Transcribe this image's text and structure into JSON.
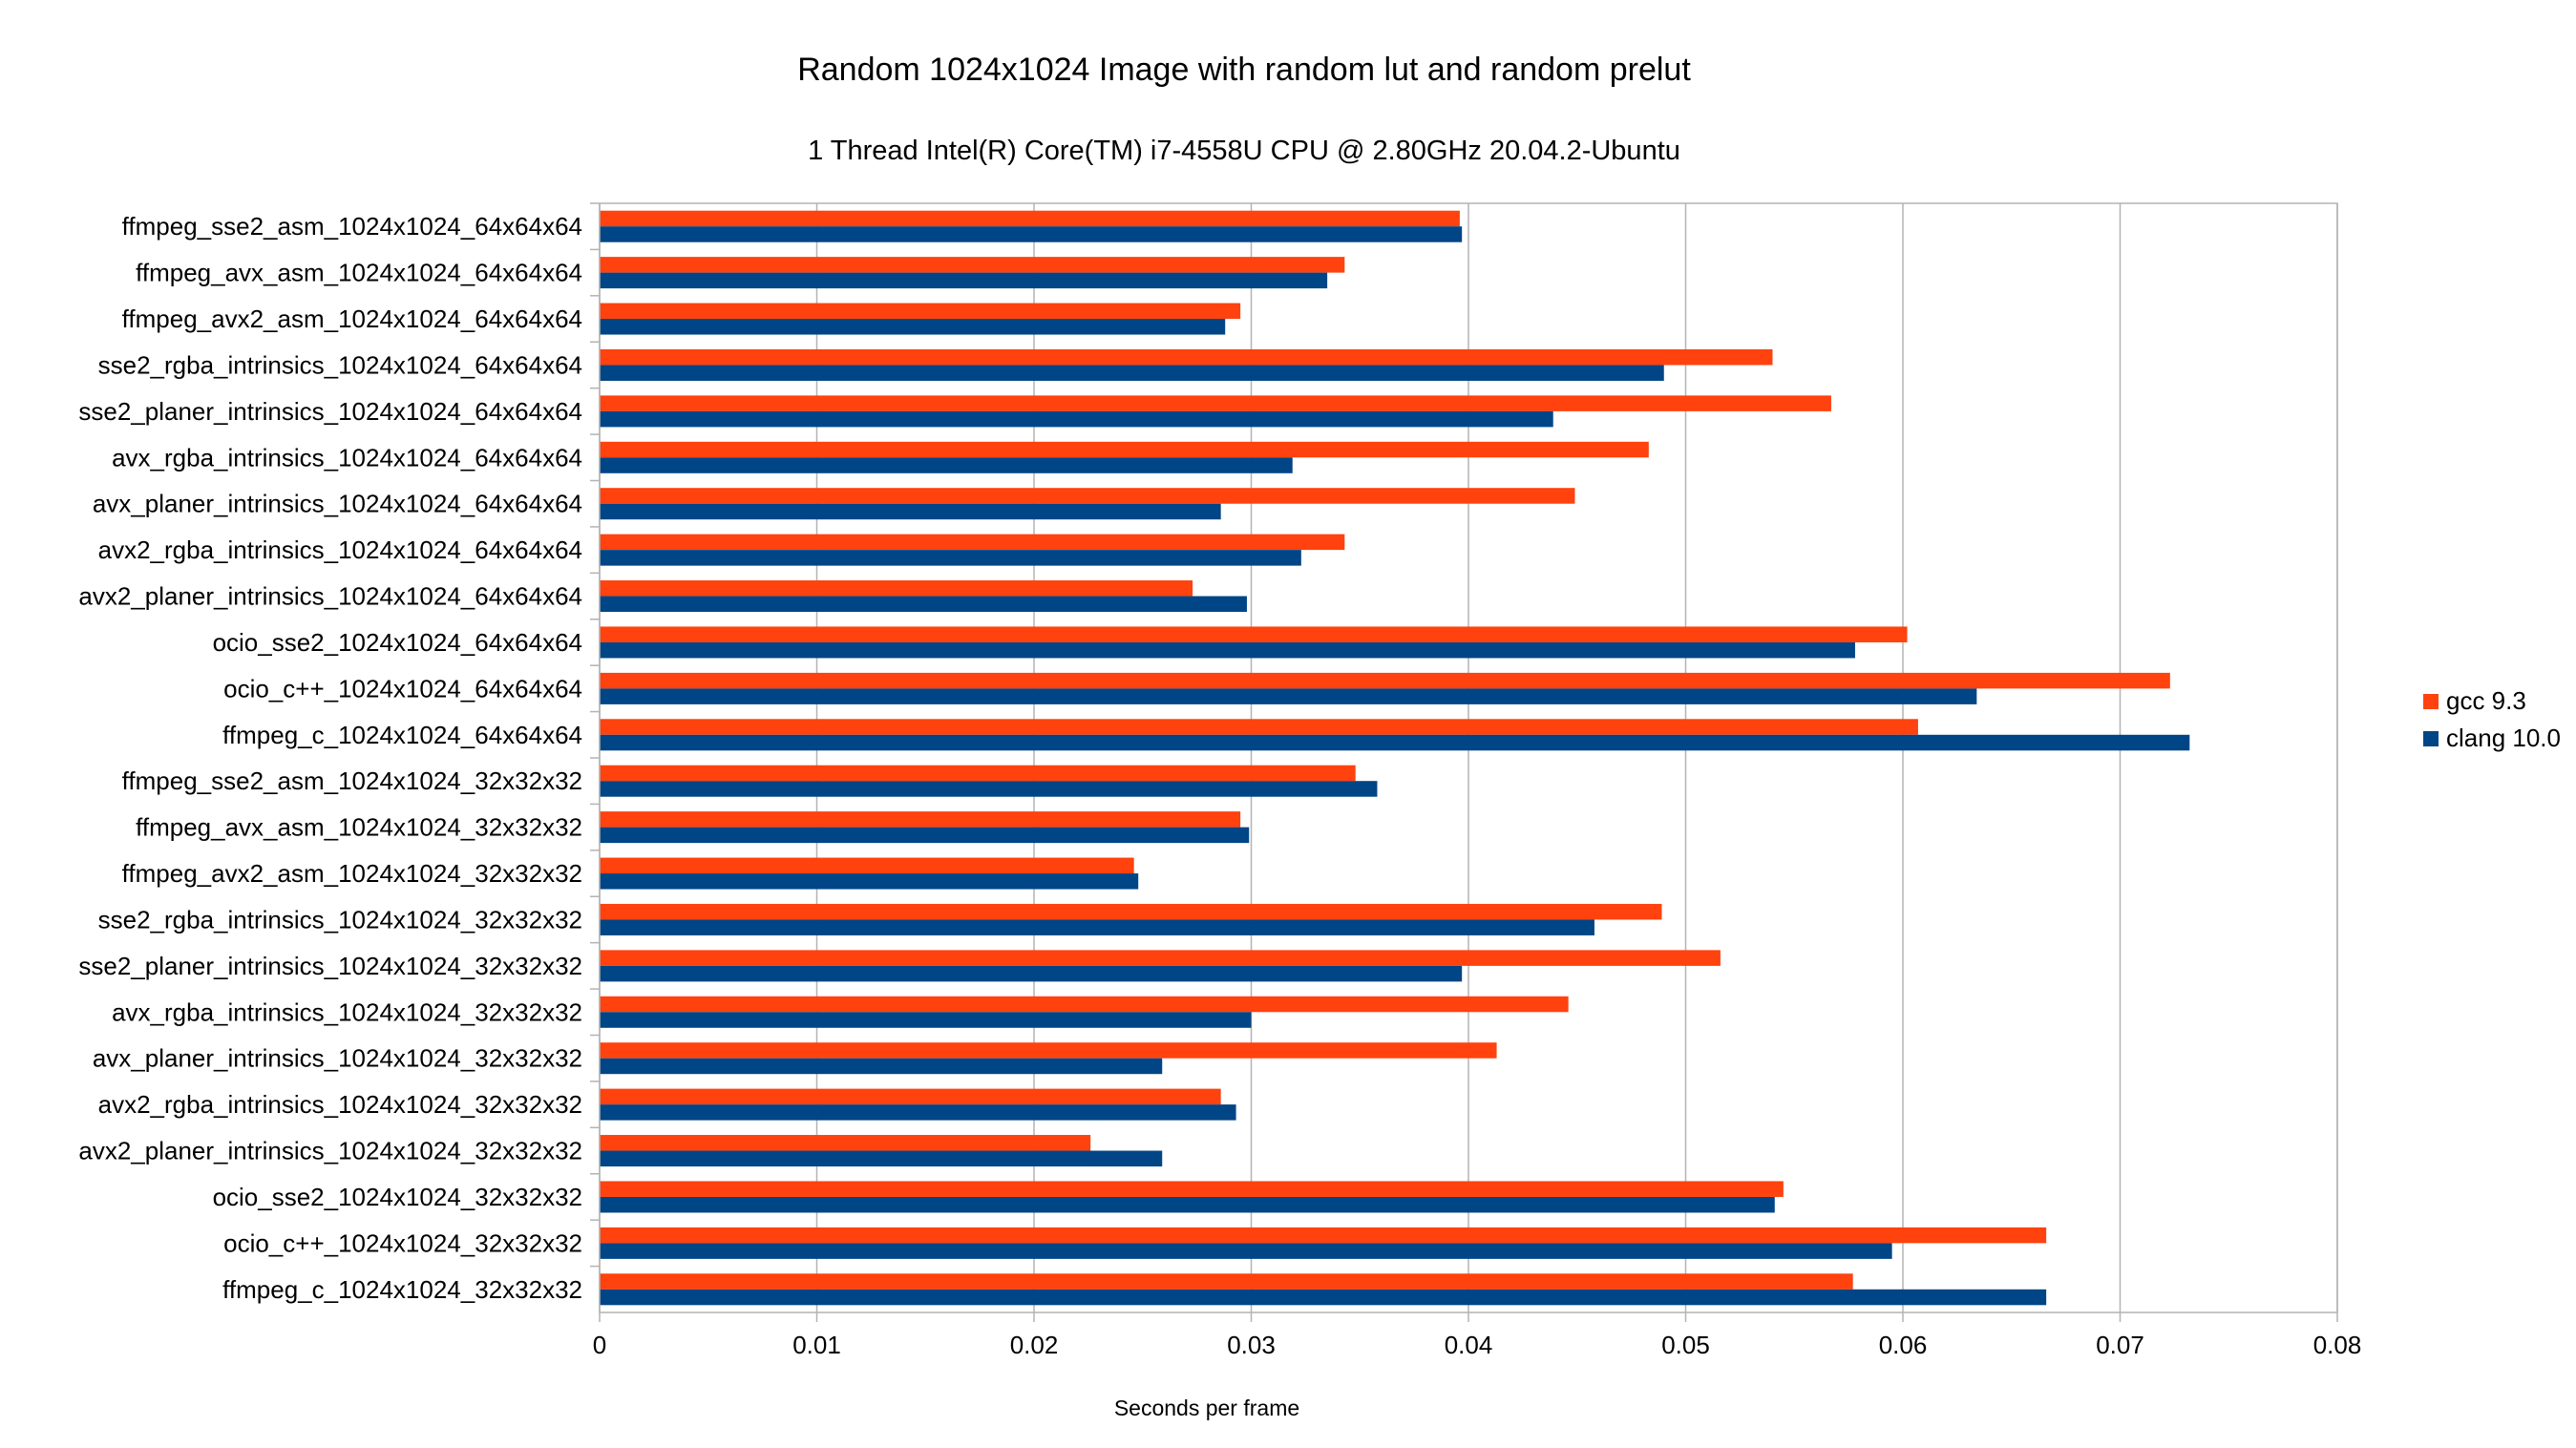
{
  "chart_data": {
    "type": "bar",
    "orientation": "horizontal",
    "title": "Random 1024x1024 Image with random lut and random prelut",
    "subtitle": "1 Thread Intel(R) Core(TM) i7-4558U CPU @ 2.80GHz 20.04.2-Ubuntu",
    "xlabel": "Seconds per frame",
    "ylabel": "",
    "xlim": [
      0,
      0.08
    ],
    "x_ticks": [
      "0",
      "0.01",
      "0.02",
      "0.03",
      "0.04",
      "0.05",
      "0.06",
      "0.07",
      "0.08"
    ],
    "grid": true,
    "legend_position": "right",
    "categories": [
      "ffmpeg_sse2_asm_1024x1024_64x64x64",
      "ffmpeg_avx_asm_1024x1024_64x64x64",
      "ffmpeg_avx2_asm_1024x1024_64x64x64",
      "sse2_rgba_intrinsics_1024x1024_64x64x64",
      "sse2_planer_intrinsics_1024x1024_64x64x64",
      "avx_rgba_intrinsics_1024x1024_64x64x64",
      "avx_planer_intrinsics_1024x1024_64x64x64",
      "avx2_rgba_intrinsics_1024x1024_64x64x64",
      "avx2_planer_intrinsics_1024x1024_64x64x64",
      "ocio_sse2_1024x1024_64x64x64",
      "ocio_c++_1024x1024_64x64x64",
      "ffmpeg_c_1024x1024_64x64x64",
      "ffmpeg_sse2_asm_1024x1024_32x32x32",
      "ffmpeg_avx_asm_1024x1024_32x32x32",
      "ffmpeg_avx2_asm_1024x1024_32x32x32",
      "sse2_rgba_intrinsics_1024x1024_32x32x32",
      "sse2_planer_intrinsics_1024x1024_32x32x32",
      "avx_rgba_intrinsics_1024x1024_32x32x32",
      "avx_planer_intrinsics_1024x1024_32x32x32",
      "avx2_rgba_intrinsics_1024x1024_32x32x32",
      "avx2_planer_intrinsics_1024x1024_32x32x32",
      "ocio_sse2_1024x1024_32x32x32",
      "ocio_c++_1024x1024_32x32x32",
      "ffmpeg_c_1024x1024_32x32x32"
    ],
    "series": [
      {
        "name": "gcc 9.3",
        "color": "#ff420e",
        "values": [
          0.0396,
          0.0343,
          0.0295,
          0.054,
          0.0567,
          0.0483,
          0.0449,
          0.0343,
          0.0273,
          0.0602,
          0.0723,
          0.0607,
          0.0348,
          0.0295,
          0.0246,
          0.0489,
          0.0516,
          0.0446,
          0.0413,
          0.0286,
          0.0226,
          0.0545,
          0.0666,
          0.0577
        ]
      },
      {
        "name": "clang 10.0",
        "color": "#004586",
        "values": [
          0.0397,
          0.0335,
          0.0288,
          0.049,
          0.0439,
          0.0319,
          0.0286,
          0.0323,
          0.0298,
          0.0578,
          0.0634,
          0.0732,
          0.0358,
          0.0299,
          0.0248,
          0.0458,
          0.0397,
          0.03,
          0.0259,
          0.0293,
          0.0259,
          0.0541,
          0.0595,
          0.0666
        ]
      }
    ]
  }
}
